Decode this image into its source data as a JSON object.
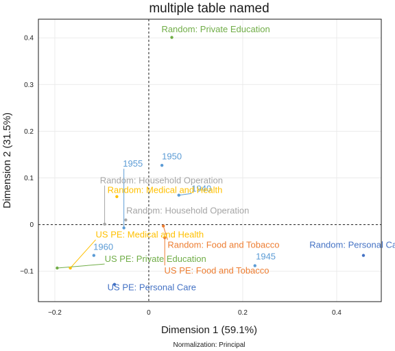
{
  "chart_data": {
    "type": "scatter",
    "title": "multiple table named",
    "xlabel": "Dimension 1 (59.1%)",
    "ylabel": "Dimension 2 (31.5%)",
    "note": "Normalization: Principal",
    "xlim": [
      -0.235,
      0.495
    ],
    "ylim": [
      -0.165,
      0.44
    ],
    "xticks": [
      -0.2,
      0,
      0.2,
      0.4
    ],
    "xtick_labels": [
      "−0.2",
      "0",
      "0.2",
      "0.4"
    ],
    "yticks": [
      -0.1,
      0,
      0.1,
      0.2,
      0.3,
      0.4
    ],
    "ytick_labels": [
      "−0.1",
      "0",
      "0.1",
      "0.2",
      "0.3",
      "0.4"
    ],
    "grid": true,
    "reference_lines": {
      "x": 0,
      "y": 0
    },
    "colors": {
      "years": "#5b9bd5",
      "household": "#a5a5a5",
      "medical": "#ffc000",
      "education": "#70ad47",
      "food": "#ed7d31",
      "personal": "#4472c4"
    },
    "points": [
      {
        "label": "Random: Private Education",
        "x": 0.049,
        "y": 0.401,
        "group": "education",
        "lx": 0.027,
        "ly": 0.412
      },
      {
        "label": "1950",
        "x": 0.028,
        "y": 0.127,
        "group": "years",
        "lx": 0.028,
        "ly": 0.14
      },
      {
        "label": "1955",
        "x": -0.053,
        "y": -0.007,
        "group": "years",
        "lx": -0.055,
        "ly": 0.124
      },
      {
        "label": "1940",
        "x": 0.064,
        "y": 0.063,
        "group": "years",
        "lx": 0.091,
        "ly": 0.071
      },
      {
        "label": "Random: Household Operation",
        "x": -0.094,
        "y": 0.001,
        "group": "household",
        "lx": -0.104,
        "ly": 0.088
      },
      {
        "label": "Random: Medical and Health",
        "x": -0.068,
        "y": 0.06,
        "group": "medical",
        "lx": -0.088,
        "ly": 0.068
      },
      {
        "label": "Random: Household Operation",
        "x": -0.049,
        "y": 0.01,
        "group": "household",
        "lx": -0.048,
        "ly": 0.024
      },
      {
        "label": "US PE: Medical and Health",
        "x": -0.167,
        "y": -0.093,
        "group": "medical",
        "lx": -0.113,
        "ly": -0.028
      },
      {
        "label": "1960",
        "x": -0.117,
        "y": -0.066,
        "group": "years",
        "lx": -0.118,
        "ly": -0.054
      },
      {
        "label": "Random: Food and Tobacco",
        "x": 0.031,
        "y": -0.003,
        "group": "food",
        "lx": 0.04,
        "ly": -0.05
      },
      {
        "label": "Random: Personal Care",
        "x": 0.457,
        "y": -0.066,
        "group": "personal",
        "lx": 0.342,
        "ly": -0.05
      },
      {
        "label": "1945",
        "x": 0.226,
        "y": -0.088,
        "group": "years",
        "lx": 0.228,
        "ly": -0.075
      },
      {
        "label": "US PE: Private Education",
        "x": -0.195,
        "y": -0.093,
        "group": "education",
        "lx": -0.094,
        "ly": -0.08
      },
      {
        "label": "US PE: Food and Tobacco",
        "x": 0.034,
        "y": -0.028,
        "group": "food",
        "lx": 0.033,
        "ly": -0.105
      },
      {
        "label": "US PE: Personal Care",
        "x": -0.073,
        "y": -0.128,
        "group": "personal",
        "lx": -0.088,
        "ly": -0.141
      }
    ]
  }
}
